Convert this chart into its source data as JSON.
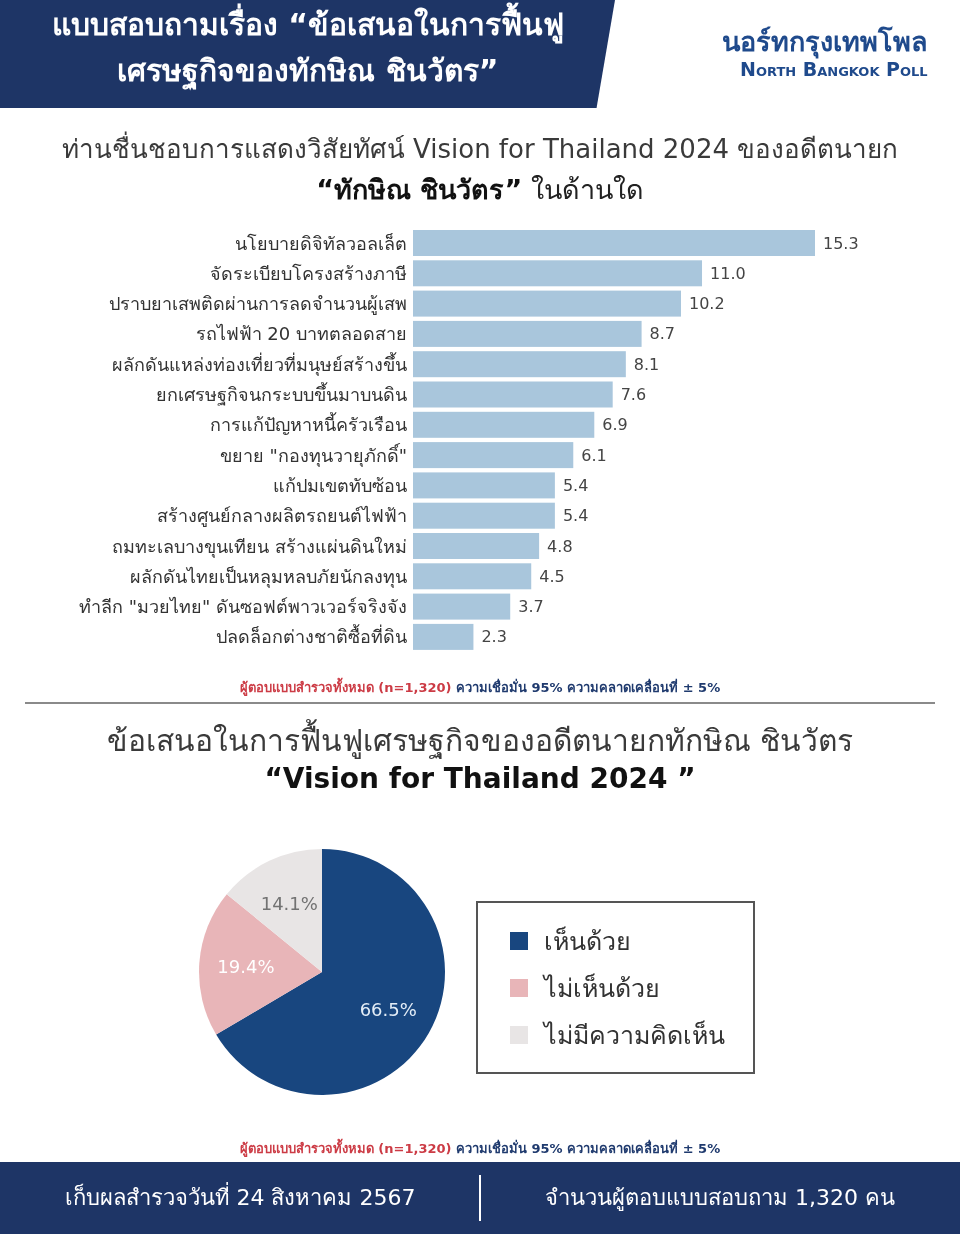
{
  "chart_data": [
    {
      "type": "bar",
      "orientation": "horizontal",
      "title": "ท่านชื่นชอบการแสดงวิสัยทัศน์ Vision for Thailand 2024 ของอดีตนายก",
      "subtitle": "“ทักษิณ ชินวัตร” ในด้านใด",
      "categories": [
        "นโยบายดิจิทัลวอลเล็ต",
        "จัดระเบียบโครงสร้างภาษี",
        "ปราบยาเสพติดผ่านการลดจำนวนผู้เสพ",
        "รถไฟฟ้า 20 บาทตลอดสาย",
        "ผลักดันแหล่งท่องเที่ยวที่มนุษย์สร้างขึ้น",
        "ยกเศรษฐกิจนกระบบขึ้นมาบนดิน",
        "การแก้ปัญหาหนี้ครัวเรือน",
        "ขยาย \"กองทุนวายุภักดิ์\"",
        "แก้ปมเขตทับซ้อน",
        "สร้างศูนย์กลางผลิตรถยนต์ไฟฟ้า",
        "ถมทะเลบางขุนเทียน สร้างแผ่นดินใหม่",
        "ผลักดันไทยเป็นหลุมหลบภัยนักลงทุน",
        "ทำลีก \"มวยไทย\" ดันซอฟต์พาวเวอร์จริงจัง",
        "ปลดล็อกต่างชาติซื้อที่ดิน"
      ],
      "values": [
        15.3,
        11.0,
        10.2,
        8.7,
        8.1,
        7.6,
        6.9,
        6.1,
        5.4,
        5.4,
        4.8,
        4.5,
        3.7,
        2.3
      ],
      "value_labels": [
        "15.3",
        "11.0",
        "10.2",
        "8.7",
        "8.1",
        "7.6",
        "6.9",
        "6.1",
        "5.4",
        "5.4",
        "4.8",
        "4.5",
        "3.7",
        "2.3"
      ],
      "color": "#a9c6dc",
      "annotations": [
        "แบบสอบถามเรื่อง “ข้อเสนอในการฟื้นฟูเศรษฐกิจของทักษิณ ชินวัตร”",
        "นอร์ทกรุงเทพโพล",
        "North Bangkok Poll",
        "ผู้ตอบแบบสำรวจทั้งหมด (n=1,320)",
        "ความเชื่อมั่น 95% ความคลาดเคลื่อนที่ ± 5%"
      ]
    },
    {
      "type": "pie",
      "title": "ข้อเสนอในการฟื้นฟูเศรษฐกิจของอดีตนายกทักษิณ ชินวัตร",
      "subtitle": "“Vision for Thailand 2024 ”",
      "categories": [
        "เห็นด้วย",
        "ไม่เห็นด้วย",
        "ไม่มีความคิดเห็น"
      ],
      "values": [
        66.5,
        19.4,
        14.1
      ],
      "value_labels": [
        "66.5%",
        "19.4%",
        "14.1%"
      ],
      "colors": [
        "#18467f",
        "#e8b5b8",
        "#e8e5e5"
      ],
      "legend": "right",
      "annotations": [
        "ผู้ตอบแบบสำรวจทั้งหมด (n=1,320)",
        "ความเชื่อมั่น 95% ความคลาดเคลื่อนที่ ± 5%",
        "เก็บผลสำรวจวันที่ 24 สิงหาคม 2567",
        "จำนวนผู้ตอบแบบสอบถาม 1,320 คน"
      ]
    }
  ]
}
